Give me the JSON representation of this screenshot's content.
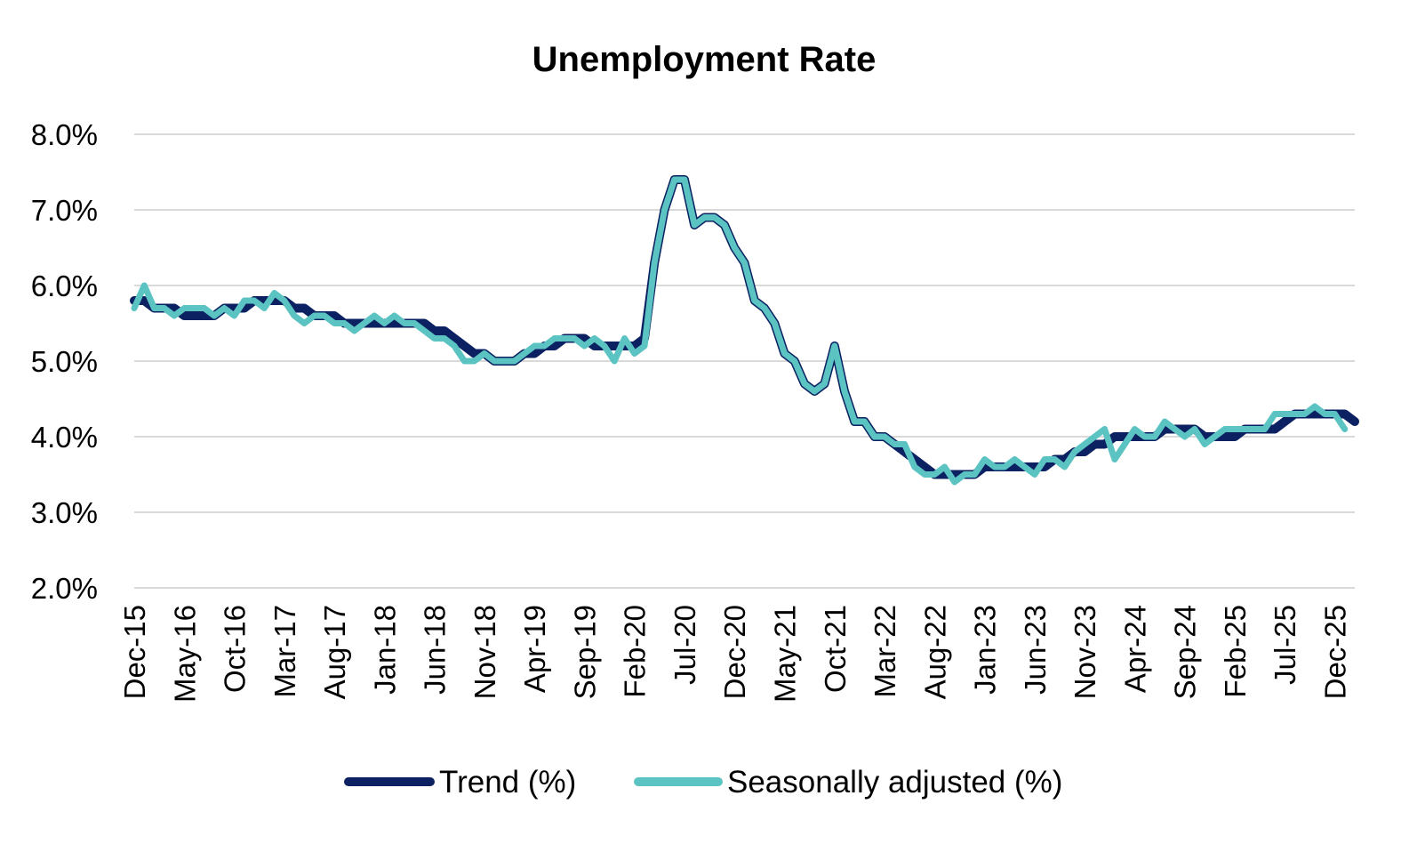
{
  "chart_data": {
    "type": "line",
    "title": "Unemployment Rate",
    "xlabel": "",
    "ylabel": "",
    "ylim": [
      2.0,
      8.0
    ],
    "yticks": [
      2.0,
      3.0,
      4.0,
      5.0,
      6.0,
      7.0,
      8.0
    ],
    "ytick_labels": [
      "2.0%",
      "3.0%",
      "4.0%",
      "5.0%",
      "6.0%",
      "7.0%",
      "8.0%"
    ],
    "xtick_labels": [
      "Dec-15",
      "May-16",
      "Oct-16",
      "Mar-17",
      "Aug-17",
      "Jan-18",
      "Jun-18",
      "Nov-18",
      "Apr-19",
      "Sep-19",
      "Feb-20",
      "Jul-20",
      "Dec-20",
      "May-21",
      "Oct-21",
      "Mar-22",
      "Aug-22",
      "Jan-23",
      "Jun-23",
      "Nov-23",
      "Apr-24",
      "Sep-24",
      "Feb-25",
      "Jul-25",
      "Dec-25"
    ],
    "xtick_step": 5,
    "grid": true,
    "legend_position": "bottom",
    "series": [
      {
        "name": "Trend (%)",
        "color": "#0b2161",
        "values": [
          5.8,
          5.8,
          5.7,
          5.7,
          5.7,
          5.6,
          5.6,
          5.6,
          5.6,
          5.7,
          5.7,
          5.7,
          5.8,
          5.8,
          5.8,
          5.8,
          5.7,
          5.7,
          5.6,
          5.6,
          5.6,
          5.5,
          5.5,
          5.5,
          5.5,
          5.5,
          5.5,
          5.5,
          5.5,
          5.5,
          5.4,
          5.4,
          5.3,
          5.2,
          5.1,
          5.1,
          5.0,
          5.0,
          5.0,
          5.1,
          5.1,
          5.2,
          5.2,
          5.3,
          5.3,
          5.3,
          5.2,
          5.2,
          5.2,
          5.2,
          5.2,
          5.3,
          6.3,
          7.0,
          7.4,
          7.4,
          6.8,
          6.9,
          6.9,
          6.8,
          6.5,
          6.3,
          5.8,
          5.7,
          5.5,
          5.1,
          5.0,
          4.7,
          4.6,
          4.7,
          5.2,
          4.6,
          4.2,
          4.2,
          4.0,
          4.0,
          3.9,
          3.8,
          3.7,
          3.6,
          3.5,
          3.5,
          3.5,
          3.5,
          3.5,
          3.6,
          3.6,
          3.6,
          3.6,
          3.6,
          3.6,
          3.6,
          3.7,
          3.7,
          3.8,
          3.8,
          3.9,
          3.9,
          4.0,
          4.0,
          4.0,
          4.0,
          4.0,
          4.1,
          4.1,
          4.1,
          4.1,
          4.0,
          4.0,
          4.0,
          4.0,
          4.1,
          4.1,
          4.1,
          4.1,
          4.2,
          4.3,
          4.3,
          4.3,
          4.3,
          4.3,
          4.3,
          4.2
        ]
      },
      {
        "name": "Seasonally adjusted (%)",
        "color": "#5bc4c2",
        "values": [
          5.7,
          6.0,
          5.7,
          5.7,
          5.6,
          5.7,
          5.7,
          5.7,
          5.6,
          5.7,
          5.6,
          5.8,
          5.8,
          5.7,
          5.9,
          5.8,
          5.6,
          5.5,
          5.6,
          5.6,
          5.5,
          5.5,
          5.4,
          5.5,
          5.6,
          5.5,
          5.6,
          5.5,
          5.5,
          5.4,
          5.3,
          5.3,
          5.2,
          5.0,
          5.0,
          5.1,
          5.0,
          5.0,
          5.0,
          5.1,
          5.2,
          5.2,
          5.3,
          5.3,
          5.3,
          5.2,
          5.3,
          5.2,
          5.0,
          5.3,
          5.1,
          5.2,
          6.3,
          7.0,
          7.4,
          7.4,
          6.8,
          6.9,
          6.9,
          6.8,
          6.5,
          6.3,
          5.8,
          5.7,
          5.5,
          5.1,
          5.0,
          4.7,
          4.6,
          4.7,
          5.2,
          4.6,
          4.2,
          4.2,
          4.0,
          4.0,
          3.9,
          3.9,
          3.6,
          3.5,
          3.5,
          3.6,
          3.4,
          3.5,
          3.5,
          3.7,
          3.6,
          3.6,
          3.7,
          3.6,
          3.5,
          3.7,
          3.7,
          3.6,
          3.8,
          3.9,
          4.0,
          4.1,
          3.7,
          3.9,
          4.1,
          4.0,
          4.0,
          4.2,
          4.1,
          4.0,
          4.1,
          3.9,
          4.0,
          4.1,
          4.1,
          4.1,
          4.1,
          4.1,
          4.3,
          4.3,
          4.3,
          4.3,
          4.4,
          4.3,
          4.3,
          4.1
        ]
      }
    ]
  }
}
